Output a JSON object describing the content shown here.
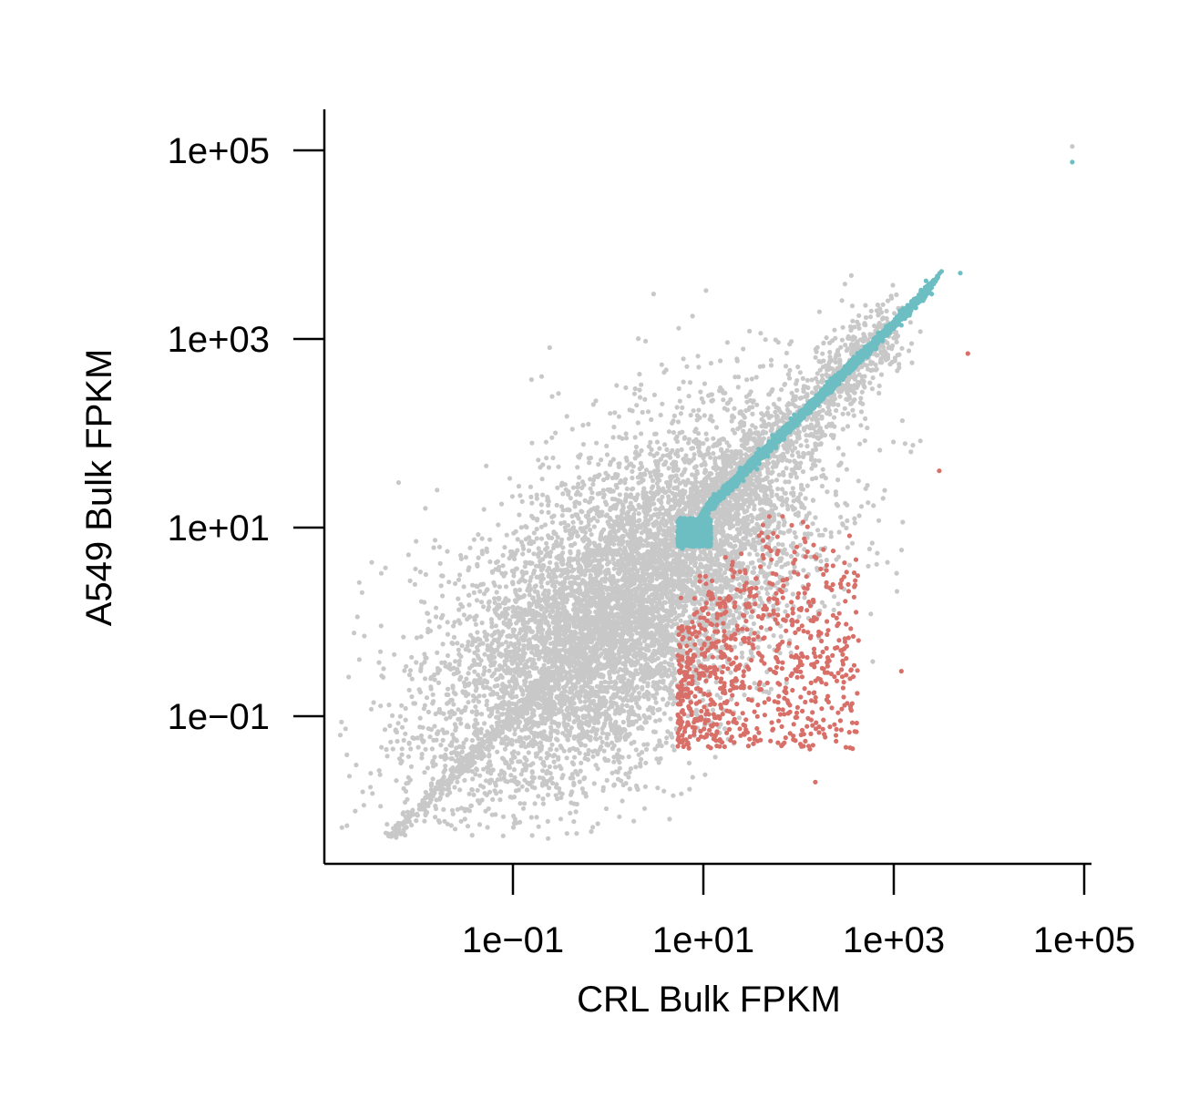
{
  "chart_data": {
    "type": "scatter",
    "title": "",
    "xlabel": "CRL Bulk FPKM",
    "ylabel": "A549 Bulk FPKM",
    "x_scale": "log10",
    "y_scale": "log10",
    "xlim": [
      0.0001,
      150000
    ],
    "ylim": [
      0.0001,
      200000
    ],
    "x_ticks": [
      0.1,
      10,
      1000,
      100000
    ],
    "y_ticks": [
      0.1,
      10,
      1000,
      100000
    ],
    "x_tick_labels": [
      "1e−01",
      "1e+01",
      "1e+03",
      "1e+05"
    ],
    "y_tick_labels": [
      "1e−01",
      "1e+01",
      "1e+03",
      "1e+05"
    ],
    "grid": false,
    "legend": "none",
    "colors": {
      "not_differential": "#c8c8c8",
      "group_teal": "#6cbec3",
      "group_red": "#d86f68"
    },
    "series": [
      {
        "color": "#c8c8c8",
        "marker_count_approx": 9000,
        "points": [
          [
            0.0016,
            0.0066
          ],
          [
            0.0063,
            30
          ],
          [
            0.016,
            25
          ],
          [
            0.05,
            0.2
          ],
          [
            0.2,
            400
          ],
          [
            0.5,
            2
          ],
          [
            1.1,
            8
          ],
          [
            3.0,
            3000
          ],
          [
            5.5,
            1300
          ],
          [
            1500,
            1500
          ],
          [
            28,
            9
          ],
          [
            75000,
            110000
          ]
        ]
      },
      {
        "color": "#6cbec3",
        "marker_count_approx": 3000,
        "points": [
          [
            6,
            6
          ],
          [
            20,
            25
          ],
          [
            60,
            90
          ],
          [
            200,
            350
          ],
          [
            600,
            900
          ],
          [
            1200,
            1400
          ],
          [
            2500,
            3000
          ],
          [
            5000,
            5000
          ],
          [
            75000,
            75000
          ]
        ]
      },
      {
        "color": "#d86f68",
        "marker_count_approx": 800,
        "points": [
          [
            6,
            0.4
          ],
          [
            8,
            1.2
          ],
          [
            12,
            0.15
          ],
          [
            20,
            4
          ],
          [
            30,
            0.6
          ],
          [
            60,
            8
          ],
          [
            100,
            2
          ],
          [
            300,
            3
          ],
          [
            150,
            0.02
          ],
          [
            1200,
            0.3
          ],
          [
            6000,
            700
          ],
          [
            3000,
            40
          ]
        ]
      }
    ]
  }
}
